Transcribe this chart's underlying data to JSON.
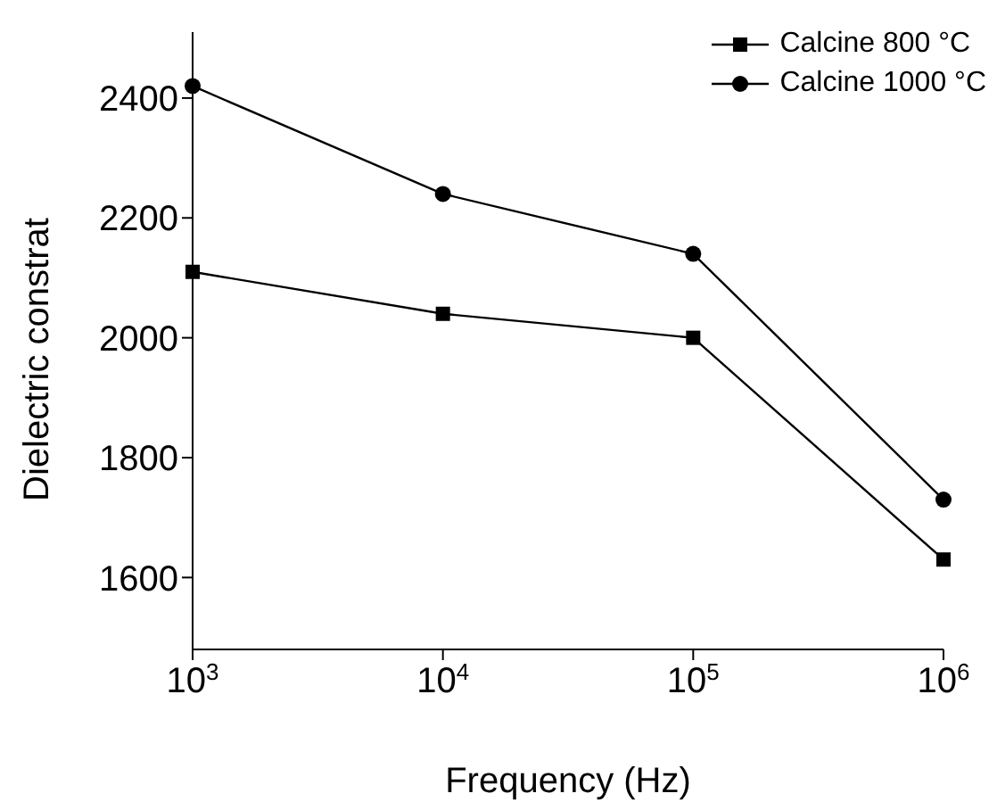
{
  "chart_data": {
    "type": "line",
    "xlabel": "Frequency (Hz)",
    "ylabel": "Dielectric constrat",
    "x": [
      1000,
      10000,
      100000,
      1000000
    ],
    "series": [
      {
        "name": "Calcine 800 °C",
        "color": "#000000",
        "marker": "square",
        "values": [
          2110,
          2040,
          2000,
          1630
        ]
      },
      {
        "name": "Calcine 1000 °C",
        "color": "#000000",
        "marker": "circle",
        "values": [
          2420,
          2240,
          2140,
          1730
        ]
      }
    ],
    "log": "x",
    "xlim": [
      1000,
      1000000
    ],
    "xticks": [
      {
        "value": 1000,
        "label": "10$^{3}$"
      },
      {
        "value": 10000,
        "label": "10$^{4}$"
      },
      {
        "value": 100000,
        "label": "10$^{5}$"
      },
      {
        "value": 1000000,
        "label": "10$^{6}$"
      }
    ],
    "ylim": [
      1480,
      2510
    ],
    "yticks": [
      1600,
      1800,
      2000,
      2200,
      2400
    ],
    "grid": false,
    "legend": "top right",
    "line_style": "solid"
  }
}
